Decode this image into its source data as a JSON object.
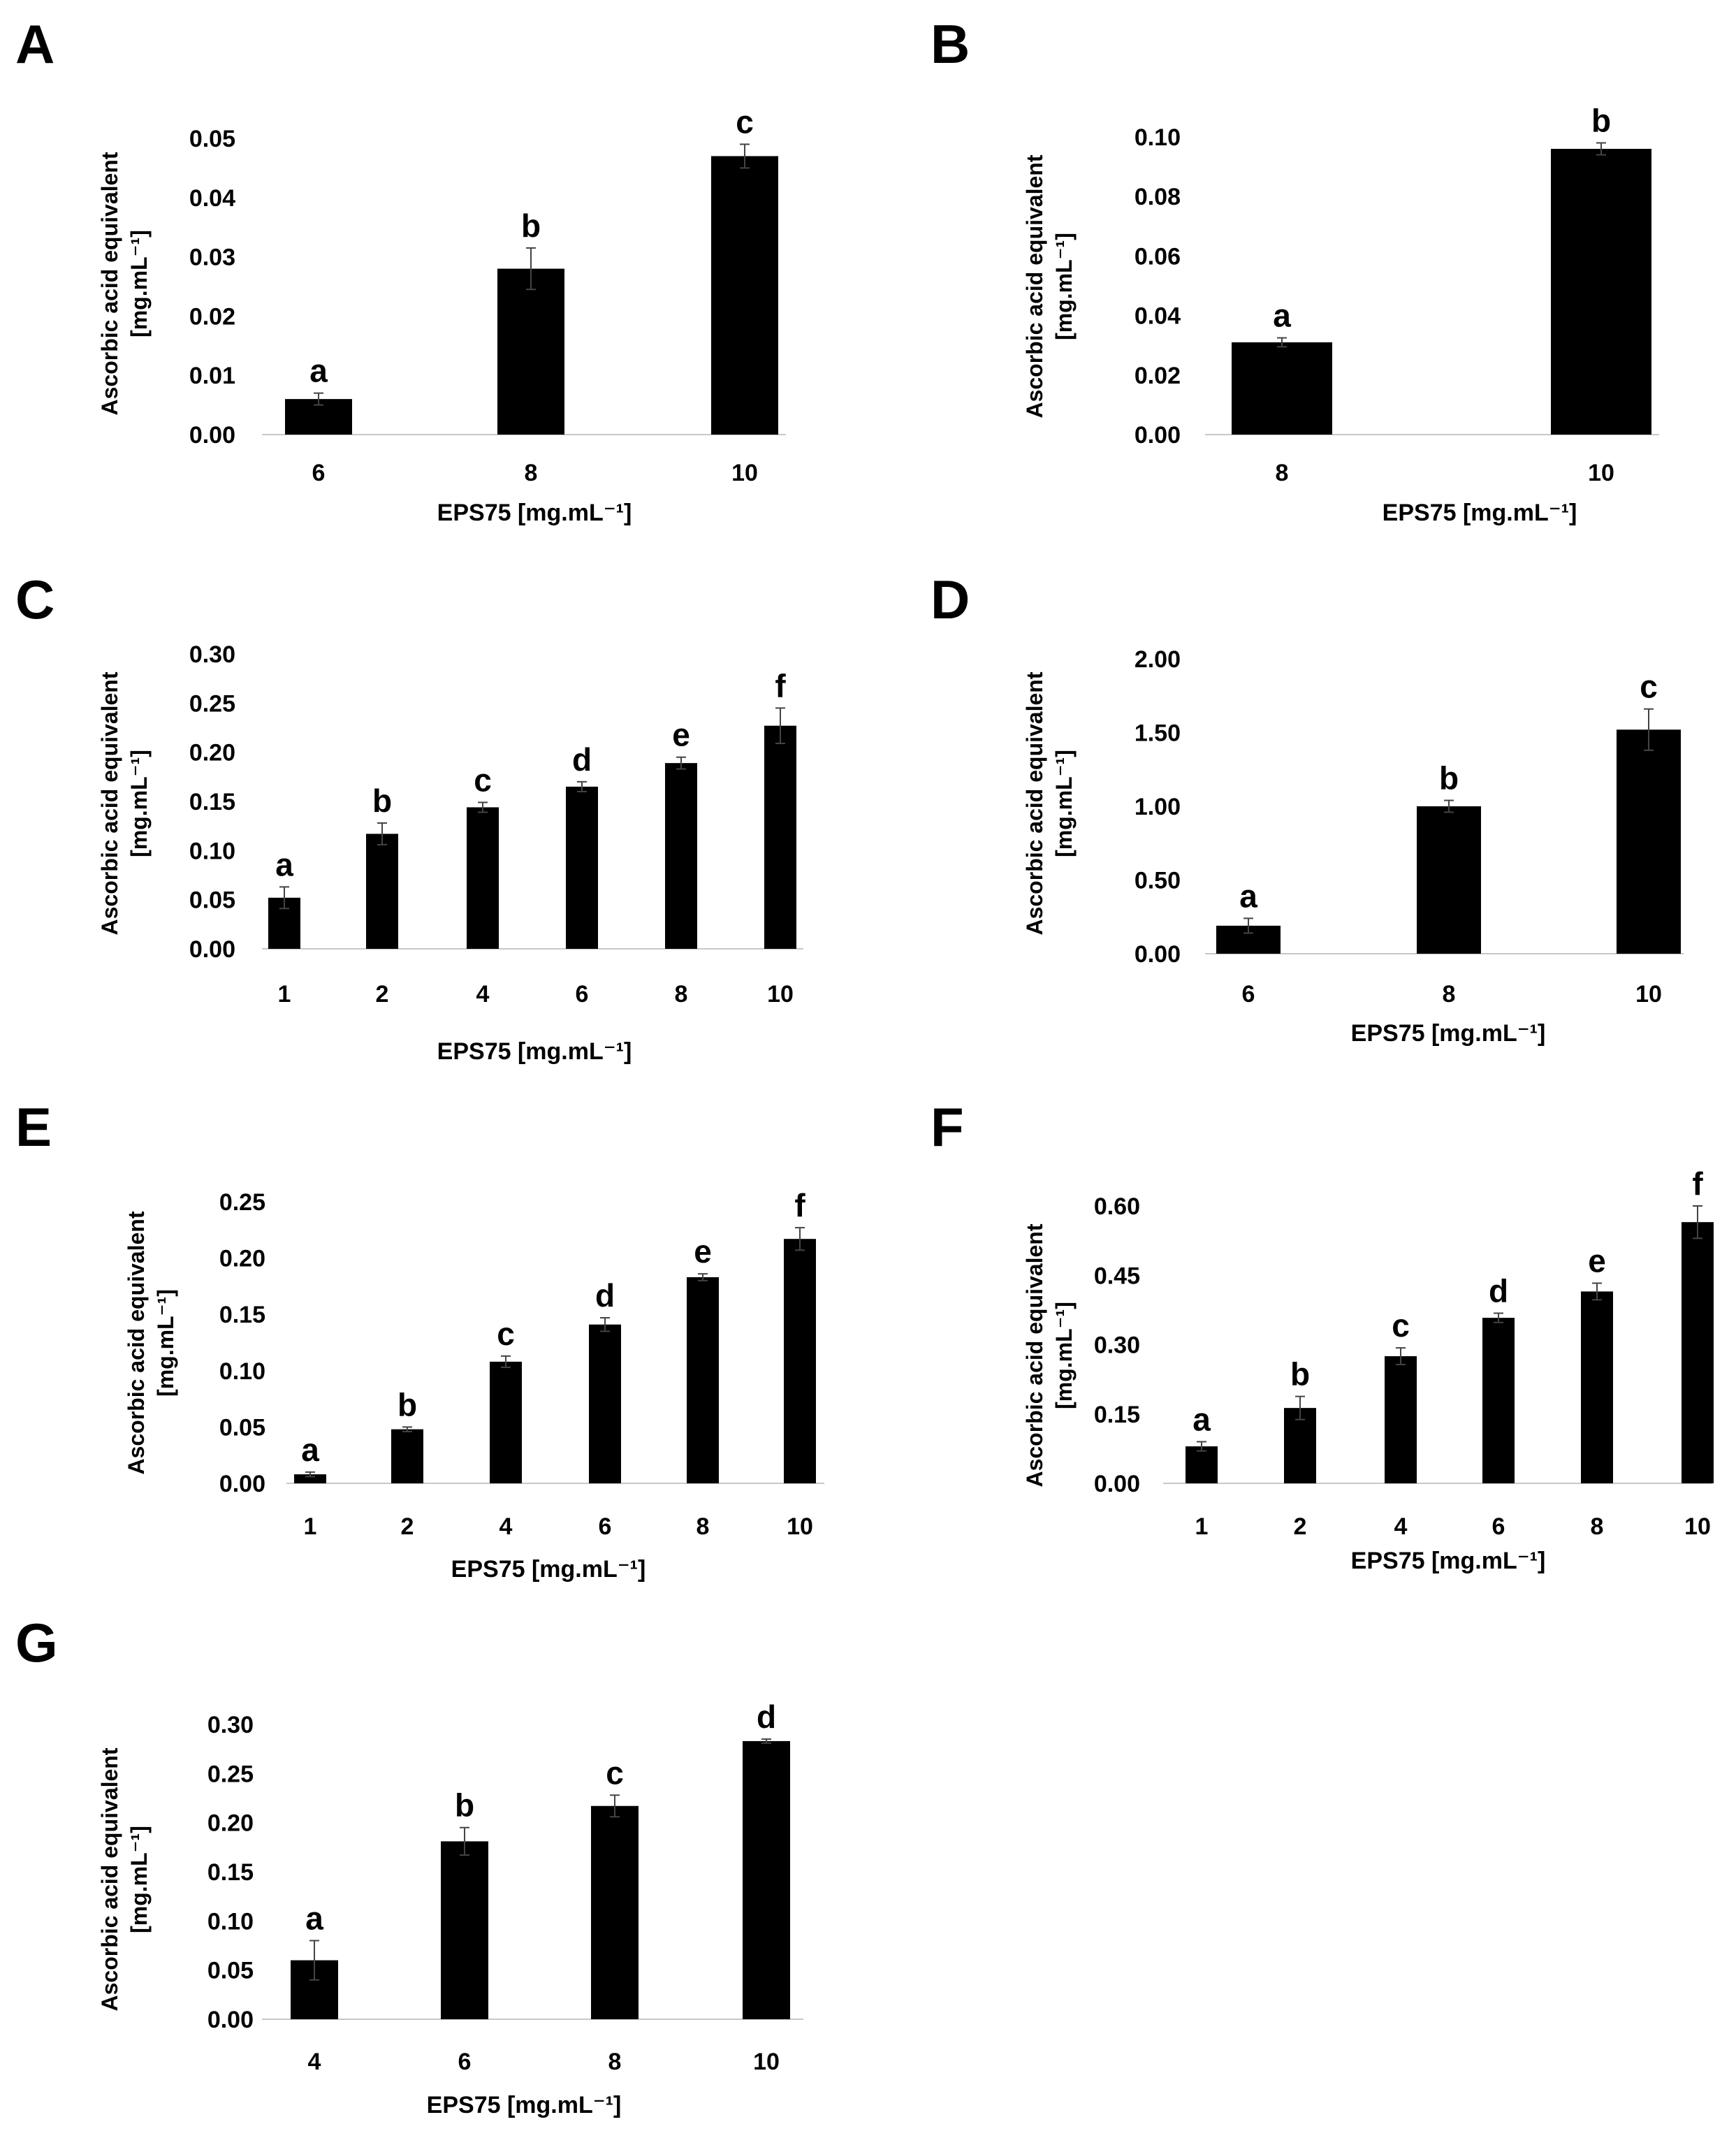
{
  "chart_data": [
    {
      "panel": "A",
      "type": "bar",
      "categories": [
        "6",
        "8",
        "10"
      ],
      "values": [
        0.006,
        0.028,
        0.047
      ],
      "errors": [
        0.001,
        0.0035,
        0.002
      ],
      "labels": [
        "a",
        "b",
        "c"
      ],
      "yticks": [
        "0.00",
        "0.01",
        "0.02",
        "0.03",
        "0.04",
        "0.05"
      ],
      "ylim": [
        0,
        0.05
      ],
      "ylabel_line1": "Ascorbic acid equivalent",
      "ylabel_line2": "[mg.mL⁻¹]",
      "xlabel": "EPS75 [mg.mL⁻¹]"
    },
    {
      "panel": "B",
      "type": "bar",
      "categories": [
        "8",
        "10"
      ],
      "values": [
        0.031,
        0.096
      ],
      "errors": [
        0.0015,
        0.002
      ],
      "labels": [
        "a",
        "b"
      ],
      "yticks": [
        "0.00",
        "0.02",
        "0.04",
        "0.06",
        "0.08",
        "0.10"
      ],
      "ylim": [
        0,
        0.1
      ],
      "ylabel_line1": "Ascorbic acid equivalent",
      "ylabel_line2": "[mg.mL⁻¹]",
      "xlabel": "EPS75 [mg.mL⁻¹]"
    },
    {
      "panel": "C",
      "type": "bar",
      "categories": [
        "1",
        "2",
        "4",
        "6",
        "8",
        "10"
      ],
      "values": [
        0.052,
        0.117,
        0.144,
        0.165,
        0.189,
        0.227
      ],
      "errors": [
        0.011,
        0.011,
        0.005,
        0.005,
        0.006,
        0.018
      ],
      "labels": [
        "a",
        "b",
        "c",
        "d",
        "e",
        "f"
      ],
      "yticks": [
        "0.00",
        "0.05",
        "0.10",
        "0.15",
        "0.20",
        "0.25",
        "0.30"
      ],
      "ylim": [
        0,
        0.3
      ],
      "ylabel_line1": "Ascorbic acid equivalent",
      "ylabel_line2": "[mg.mL⁻¹]",
      "xlabel": "EPS75 [mg.mL⁻¹]"
    },
    {
      "panel": "D",
      "type": "bar",
      "categories": [
        "6",
        "8",
        "10"
      ],
      "values": [
        0.19,
        1.0,
        1.52
      ],
      "errors": [
        0.05,
        0.04,
        0.14
      ],
      "labels": [
        "a",
        "b",
        "c"
      ],
      "yticks": [
        "0.00",
        "0.50",
        "1.00",
        "1.50",
        "2.00"
      ],
      "ylim": [
        0,
        2.0
      ],
      "ylabel_line1": "Ascorbic acid equivalent",
      "ylabel_line2": "[mg.mL⁻¹]",
      "xlabel": "EPS75 [mg.mL⁻¹]"
    },
    {
      "panel": "E",
      "type": "bar",
      "categories": [
        "1",
        "2",
        "4",
        "6",
        "8",
        "10"
      ],
      "values": [
        0.008,
        0.048,
        0.108,
        0.141,
        0.183,
        0.217
      ],
      "errors": [
        0.002,
        0.002,
        0.005,
        0.006,
        0.003,
        0.01
      ],
      "labels": [
        "a",
        "b",
        "c",
        "d",
        "e",
        "f"
      ],
      "yticks": [
        "0.00",
        "0.05",
        "0.10",
        "0.15",
        "0.20",
        "0.25"
      ],
      "ylim": [
        0,
        0.25
      ],
      "ylabel_line1": "Ascorbic acid equivalent",
      "ylabel_line2": "[mg.mL⁻¹]",
      "xlabel": "EPS75 [mg.mL⁻¹]"
    },
    {
      "panel": "F",
      "type": "bar",
      "categories": [
        "1",
        "2",
        "4",
        "6",
        "8",
        "10"
      ],
      "values": [
        0.08,
        0.163,
        0.275,
        0.358,
        0.415,
        0.565
      ],
      "errors": [
        0.01,
        0.025,
        0.018,
        0.01,
        0.018,
        0.035
      ],
      "labels": [
        "a",
        "b",
        "c",
        "d",
        "e",
        "f"
      ],
      "yticks": [
        "0.00",
        "0.15",
        "0.30",
        "0.45",
        "0.60"
      ],
      "ylim": [
        0,
        0.6
      ],
      "ylabel_line1": "Ascorbic acid equivalent",
      "ylabel_line2": "[mg.mL⁻¹]",
      "xlabel": "EPS75 [mg.mL⁻¹]"
    },
    {
      "panel": "G",
      "type": "bar",
      "categories": [
        "4",
        "6",
        "8",
        "10"
      ],
      "values": [
        0.06,
        0.181,
        0.217,
        0.283
      ],
      "errors": [
        0.02,
        0.014,
        0.011,
        0.002
      ],
      "labels": [
        "a",
        "b",
        "c",
        "d"
      ],
      "yticks": [
        "0.00",
        "0.05",
        "0.10",
        "0.15",
        "0.20",
        "0.25",
        "0.30"
      ],
      "ylim": [
        0,
        0.3
      ],
      "ylabel_line1": "Ascorbic acid equivalent",
      "ylabel_line2": "[mg.mL⁻¹]",
      "xlabel": "EPS75 [mg.mL⁻¹]"
    }
  ]
}
